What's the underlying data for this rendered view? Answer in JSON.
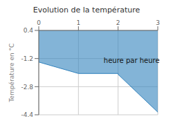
{
  "chart_data": {
    "type": "area",
    "title": "Evolution de la température",
    "y_label": "Température en °C",
    "x": [
      0,
      1,
      2,
      2,
      3
    ],
    "values": [
      -1.4,
      -2.05,
      -2.05,
      -2.1,
      -4.25
    ],
    "xlim": [
      0,
      3
    ],
    "ylim": [
      -4.4,
      0.4
    ],
    "xticks": [
      0,
      1,
      2,
      3
    ],
    "yticks": [
      0.4,
      -1.2,
      -2.8,
      -4.4
    ],
    "grid": true,
    "annotations": [
      {
        "text": "heure par heure",
        "x": 1.55,
        "y": -1.3
      }
    ]
  }
}
